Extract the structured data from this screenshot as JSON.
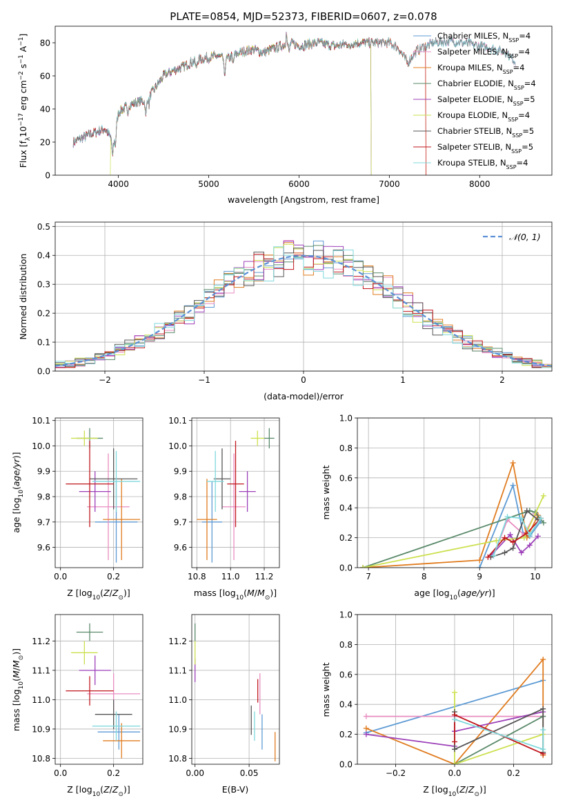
{
  "figure": {
    "title": "PLATE=0854, MJD=52373, FIBERID=0607, z=0.078"
  },
  "colors": {
    "Chabrier MILES": "#5d9ad4",
    "Salpeter MILES": "#e88cc0",
    "Kroupa MILES": "#e07b1e",
    "Chabrier ELODIE": "#5a8a6a",
    "Salpeter ELODIE": "#9c3fb8",
    "Kroupa ELODIE": "#cde04f",
    "Chabrier STELIB": "#555555",
    "Salpeter STELIB": "#c0161c",
    "Kroupa STELIB": "#7fd8dc",
    "normal": "#5a8fd6",
    "grid": "#b0b0b0"
  },
  "chart_data": [
    {
      "id": "spectrum",
      "type": "line",
      "xlabel": "wavelength [Angstrom, rest frame]",
      "ylabel": "Flux [f$_\\lambda$10$^{-17}$ erg cm$^{-2}$ s$^{-1}$ A$^{-1}$]",
      "xlim": [
        3300,
        8800
      ],
      "ylim": [
        0,
        90
      ],
      "xticks": [
        4000,
        5000,
        6000,
        7000,
        8000
      ],
      "yticks": [
        0,
        20,
        40,
        60,
        80
      ],
      "grid": false,
      "legend_position": "right",
      "legend": [
        {
          "model": "Chabrier MILES",
          "nssp": "4"
        },
        {
          "model": "Salpeter MILES",
          "nssp": "4"
        },
        {
          "model": "Kroupa MILES",
          "nssp": "4"
        },
        {
          "model": "Chabrier ELODIE",
          "nssp": "4"
        },
        {
          "model": "Salpeter ELODIE",
          "nssp": "5"
        },
        {
          "model": "Kroupa ELODIE",
          "nssp": "4"
        },
        {
          "model": "Chabrier STELIB",
          "nssp": "5"
        },
        {
          "model": "Salpeter STELIB",
          "nssp": "5"
        },
        {
          "model": "Kroupa STELIB",
          "nssp": "4"
        }
      ],
      "nssp_label": "N",
      "nssp_sub": "SSP",
      "continuum": {
        "x": [
          3500,
          3700,
          3850,
          3950,
          4000,
          4100,
          4200,
          4300,
          4400,
          4500,
          4600,
          4700,
          4800,
          4900,
          5000,
          5100,
          5200,
          5300,
          5400,
          5500,
          5600,
          5700,
          5800,
          5900,
          6000,
          6200,
          6400,
          6600,
          6800,
          7000,
          7100,
          7200,
          7300,
          7400,
          7500,
          7700,
          7900,
          8100,
          8300,
          8400
        ],
        "y": [
          20,
          25,
          28,
          20,
          38,
          42,
          44,
          45,
          52,
          60,
          63,
          65,
          68,
          70,
          71,
          72,
          70,
          73,
          75,
          76,
          74,
          76,
          78,
          80,
          78,
          80,
          78,
          80,
          80,
          80,
          77,
          68,
          75,
          78,
          80,
          81,
          79,
          77,
          74,
          68
        ]
      },
      "absorption_lines": [
        {
          "x": 3934,
          "depth": 10
        },
        {
          "x": 3968,
          "depth": 8
        },
        {
          "x": 4101,
          "depth": 6
        },
        {
          "x": 4304,
          "depth": 10
        },
        {
          "x": 4340,
          "depth": 5
        },
        {
          "x": 4861,
          "depth": 5
        },
        {
          "x": 5175,
          "depth": 12
        },
        {
          "x": 5270,
          "depth": 5
        },
        {
          "x": 5890,
          "depth": 6
        },
        {
          "x": 6563,
          "depth": 4
        }
      ],
      "emission_lines": [
        {
          "x": 5860,
          "height": 10
        }
      ],
      "masked_regions": [
        {
          "model": "Kroupa ELODIE",
          "from": 3300,
          "to": 3910
        },
        {
          "model": "Kroupa ELODIE",
          "from": 6795,
          "to": 8800
        },
        {
          "model": "Chabrier ELODIE",
          "from": 6795,
          "to": 8800
        },
        {
          "model": "Salpeter ELODIE",
          "from": 6795,
          "to": 8800
        },
        {
          "model": "Salpeter STELIB",
          "from": 7405,
          "to": 8800
        },
        {
          "model": "Kroupa MILES",
          "from": 7405,
          "to": 8800
        }
      ]
    },
    {
      "id": "residuals",
      "type": "histogram",
      "xlabel": "(data-model)/error",
      "ylabel": "Normed distribution",
      "xlim": [
        -2.5,
        2.5
      ],
      "ylim": [
        0,
        0.515
      ],
      "xticks": [
        -2,
        -1,
        0,
        1,
        2
      ],
      "yticks": [
        0.0,
        0.1,
        0.2,
        0.3,
        0.4,
        0.5
      ],
      "grid": true,
      "legend": "𝒩(0, 1)",
      "bin_width": 0.1
    },
    {
      "id": "age-vs-metallicity",
      "type": "scatter",
      "xlabel": "Z [log10(Z/Z⊙)]",
      "ylabel": "age [log10(age/yr)]",
      "xlim": [
        -0.02,
        0.31
      ],
      "ylim": [
        9.52,
        10.11
      ],
      "xticks": [
        0.0,
        0.2
      ],
      "yticks": [
        9.6,
        9.7,
        9.8,
        9.9,
        10.0,
        10.1
      ],
      "grid": true,
      "points": [
        {
          "model": "Chabrier MILES",
          "x": 0.21,
          "xerr": 0.08,
          "y": 9.7,
          "yerr": 0.16
        },
        {
          "model": "Salpeter MILES",
          "x": 0.18,
          "xerr": 0.08,
          "y": 9.76,
          "yerr": 0.21
        },
        {
          "model": "Kroupa MILES",
          "x": 0.23,
          "xerr": 0.07,
          "y": 9.71,
          "yerr": 0.16
        },
        {
          "model": "Chabrier ELODIE",
          "x": 0.11,
          "xerr": 0.05,
          "y": 10.03,
          "yerr": 0.04
        },
        {
          "model": "Salpeter ELODIE",
          "x": 0.13,
          "xerr": 0.06,
          "y": 9.82,
          "yerr": 0.08
        },
        {
          "model": "Kroupa ELODIE",
          "x": 0.09,
          "xerr": 0.05,
          "y": 10.03,
          "yerr": 0.03
        },
        {
          "model": "Chabrier STELIB",
          "x": 0.2,
          "xerr": 0.09,
          "y": 9.87,
          "yerr": 0.12
        },
        {
          "model": "Salpeter STELIB",
          "x": 0.11,
          "xerr": 0.09,
          "y": 9.85,
          "yerr": 0.17
        },
        {
          "model": "Kroupa STELIB",
          "x": 0.21,
          "xerr": 0.09,
          "y": 9.86,
          "yerr": 0.12
        }
      ]
    },
    {
      "id": "age-vs-mass",
      "type": "scatter",
      "xlabel": "mass [log10(M/M⊙)]",
      "ylabel": "",
      "xlim": [
        10.77,
        11.29
      ],
      "ylim": [
        9.52,
        10.11
      ],
      "xticks": [
        10.8,
        11.0,
        11.2
      ],
      "yticks": [
        9.6,
        9.7,
        9.8,
        9.9,
        10.0,
        10.1
      ],
      "grid": true,
      "points": [
        {
          "model": "Chabrier MILES",
          "x": 10.89,
          "xerr": 0.06,
          "y": 9.7,
          "yerr": 0.16
        },
        {
          "model": "Salpeter MILES",
          "x": 11.02,
          "xerr": 0.07,
          "y": 9.76,
          "yerr": 0.21
        },
        {
          "model": "Kroupa MILES",
          "x": 10.86,
          "xerr": 0.06,
          "y": 9.71,
          "yerr": 0.16
        },
        {
          "model": "Chabrier ELODIE",
          "x": 11.23,
          "xerr": 0.03,
          "y": 10.03,
          "yerr": 0.04
        },
        {
          "model": "Salpeter ELODIE",
          "x": 11.1,
          "xerr": 0.05,
          "y": 9.82,
          "yerr": 0.08
        },
        {
          "model": "Kroupa ELODIE",
          "x": 11.16,
          "xerr": 0.04,
          "y": 10.03,
          "yerr": 0.03
        },
        {
          "model": "Chabrier STELIB",
          "x": 10.95,
          "xerr": 0.05,
          "y": 9.87,
          "yerr": 0.12
        },
        {
          "model": "Salpeter STELIB",
          "x": 11.03,
          "xerr": 0.05,
          "y": 9.85,
          "yerr": 0.17
        },
        {
          "model": "Kroupa STELIB",
          "x": 10.91,
          "xerr": 0.05,
          "y": 9.86,
          "yerr": 0.12
        }
      ]
    },
    {
      "id": "weight-vs-age",
      "type": "line",
      "xlabel": "age [log10(age/yr)]",
      "ylabel": "mass weight",
      "xlim": [
        6.8,
        10.3
      ],
      "ylim": [
        0,
        1
      ],
      "xticks": [
        7,
        8,
        9,
        10
      ],
      "yticks": [
        0.0,
        0.2,
        0.4,
        0.6,
        0.8,
        1.0
      ],
      "grid": true,
      "series": [
        {
          "model": "Chabrier MILES",
          "x": [
            9.0,
            9.6,
            9.8,
            9.9,
            10.1
          ],
          "y": [
            0.0,
            0.55,
            0.2,
            0.21,
            0.31
          ]
        },
        {
          "model": "Salpeter MILES",
          "x": [
            9.25,
            9.5,
            9.8,
            10.0
          ],
          "y": [
            0.08,
            0.32,
            0.22,
            0.36
          ]
        },
        {
          "model": "Kroupa MILES",
          "x": [
            6.9,
            9.0,
            9.6,
            9.85,
            10.05
          ],
          "y": [
            0.0,
            0.05,
            0.7,
            0.2,
            0.35
          ]
        },
        {
          "model": "Chabrier ELODIE",
          "x": [
            6.9,
            9.9,
            10.0,
            10.15
          ],
          "y": [
            0.0,
            0.38,
            0.37,
            0.3
          ]
        },
        {
          "model": "Salpeter ELODIE",
          "x": [
            9.2,
            9.55,
            9.75,
            9.9,
            10.05
          ],
          "y": [
            0.08,
            0.22,
            0.1,
            0.15,
            0.21
          ]
        },
        {
          "model": "Kroupa ELODIE",
          "x": [
            6.9,
            9.3,
            9.8,
            10.15
          ],
          "y": [
            0.0,
            0.18,
            0.2,
            0.48
          ]
        },
        {
          "model": "Chabrier STELIB",
          "x": [
            9.2,
            9.45,
            9.6,
            9.85,
            10.05
          ],
          "y": [
            0.07,
            0.1,
            0.13,
            0.38,
            0.32
          ]
        },
        {
          "model": "Salpeter STELIB",
          "x": [
            9.15,
            9.45,
            9.6,
            9.85,
            10.1
          ],
          "y": [
            0.07,
            0.2,
            0.17,
            0.23,
            0.33
          ]
        },
        {
          "model": "Kroupa STELIB",
          "x": [
            9.25,
            9.5,
            9.75,
            9.9,
            10.1
          ],
          "y": [
            0.08,
            0.34,
            0.33,
            0.22,
            0.33
          ]
        }
      ]
    },
    {
      "id": "mass-vs-metallicity",
      "type": "scatter",
      "xlabel": "Z [log10(Z/Z⊙)]",
      "ylabel": "mass [log10(M/M⊙)]",
      "xlim": [
        -0.02,
        0.31
      ],
      "ylim": [
        10.78,
        11.29
      ],
      "xticks": [
        0.0,
        0.2
      ],
      "yticks": [
        10.8,
        10.9,
        11.0,
        11.1,
        11.2
      ],
      "grid": true,
      "points": [
        {
          "model": "Chabrier MILES",
          "x": 0.22,
          "xerr": 0.08,
          "y": 10.89,
          "yerr": 0.06
        },
        {
          "model": "Salpeter MILES",
          "x": 0.2,
          "xerr": 0.1,
          "y": 11.02,
          "yerr": 0.07
        },
        {
          "model": "Kroupa MILES",
          "x": 0.23,
          "xerr": 0.07,
          "y": 10.86,
          "yerr": 0.06
        },
        {
          "model": "Chabrier ELODIE",
          "x": 0.11,
          "xerr": 0.05,
          "y": 11.23,
          "yerr": 0.03
        },
        {
          "model": "Salpeter ELODIE",
          "x": 0.13,
          "xerr": 0.06,
          "y": 11.1,
          "yerr": 0.05
        },
        {
          "model": "Kroupa ELODIE",
          "x": 0.09,
          "xerr": 0.05,
          "y": 11.16,
          "yerr": 0.04
        },
        {
          "model": "Chabrier STELIB",
          "x": 0.2,
          "xerr": 0.07,
          "y": 10.95,
          "yerr": 0.05
        },
        {
          "model": "Salpeter STELIB",
          "x": 0.11,
          "xerr": 0.09,
          "y": 11.03,
          "yerr": 0.05
        },
        {
          "model": "Kroupa STELIB",
          "x": 0.21,
          "xerr": 0.09,
          "y": 10.91,
          "yerr": 0.05
        }
      ]
    },
    {
      "id": "mass-vs-ebv",
      "type": "scatter",
      "xlabel": "E(B-V)",
      "ylabel": "",
      "xlim": [
        -0.003,
        0.078
      ],
      "ylim": [
        10.78,
        11.29
      ],
      "xticks": [
        0.0,
        0.05
      ],
      "yticks": [
        10.8,
        10.9,
        11.0,
        11.1,
        11.2
      ],
      "grid": true,
      "points": [
        {
          "model": "Chabrier MILES",
          "x": 0.062,
          "xerr": 0,
          "y": 10.89,
          "yerr": 0.06
        },
        {
          "model": "Salpeter MILES",
          "x": 0.06,
          "xerr": 0,
          "y": 11.02,
          "yerr": 0.07
        },
        {
          "model": "Kroupa MILES",
          "x": 0.074,
          "xerr": 0,
          "y": 10.84,
          "yerr": 0.05
        },
        {
          "model": "Chabrier ELODIE",
          "x": 0.0,
          "xerr": 0,
          "y": 11.23,
          "yerr": 0.03
        },
        {
          "model": "Salpeter ELODIE",
          "x": 0.0,
          "xerr": 0,
          "y": 11.1,
          "yerr": 0.04
        },
        {
          "model": "Kroupa ELODIE",
          "x": 0.0,
          "xerr": 0,
          "y": 11.16,
          "yerr": 0.04
        },
        {
          "model": "Chabrier STELIB",
          "x": 0.052,
          "xerr": 0,
          "y": 10.93,
          "yerr": 0.05
        },
        {
          "model": "Salpeter STELIB",
          "x": 0.058,
          "xerr": 0,
          "y": 11.03,
          "yerr": 0.04
        },
        {
          "model": "Kroupa STELIB",
          "x": 0.055,
          "xerr": 0,
          "y": 10.91,
          "yerr": 0.05
        }
      ]
    },
    {
      "id": "weight-vs-metallicity",
      "type": "line",
      "xlabel": "Z [log10(Z/Z⊙)]",
      "ylabel": "mass weight",
      "xlim": [
        -0.33,
        0.33
      ],
      "ylim": [
        0,
        1
      ],
      "xticks": [
        -0.2,
        0.0,
        0.2
      ],
      "yticks": [
        0.0,
        0.2,
        0.4,
        0.6,
        0.8,
        1.0
      ],
      "grid": true,
      "series": [
        {
          "model": "Chabrier MILES",
          "x": [
            -0.3,
            0.3
          ],
          "y": [
            0.21,
            0.56
          ]
        },
        {
          "model": "Salpeter MILES",
          "x": [
            -0.3,
            0.0,
            0.3
          ],
          "y": [
            0.32,
            0.32,
            0.32
          ]
        },
        {
          "model": "Kroupa MILES",
          "x": [
            -0.3,
            0.0,
            0.3,
            0.3
          ],
          "y": [
            0.24,
            0.0,
            0.7,
            0.06
          ]
        },
        {
          "model": "Chabrier ELODIE",
          "x": [
            0.0,
            0.3
          ],
          "y": [
            0.0,
            0.32
          ]
        },
        {
          "model": "Salpeter ELODIE",
          "x": [
            -0.3,
            0.0,
            0.0,
            0.3
          ],
          "y": [
            0.2,
            0.12,
            0.22,
            0.35
          ]
        },
        {
          "model": "Kroupa ELODIE",
          "x": [
            0.0,
            0.0,
            0.3
          ],
          "y": [
            0.48,
            0.0,
            0.2
          ]
        },
        {
          "model": "Chabrier STELIB",
          "x": [
            0.0,
            0.0,
            0.3,
            0.3
          ],
          "y": [
            0.35,
            0.1,
            0.37,
            0.08
          ]
        },
        {
          "model": "Salpeter STELIB",
          "x": [
            0.0,
            0.0,
            0.3
          ],
          "y": [
            0.15,
            0.33,
            0.07
          ]
        },
        {
          "model": "Kroupa STELIB",
          "x": [
            0.0,
            0.3,
            0.3
          ],
          "y": [
            0.3,
            0.1,
            0.23
          ]
        }
      ]
    }
  ]
}
